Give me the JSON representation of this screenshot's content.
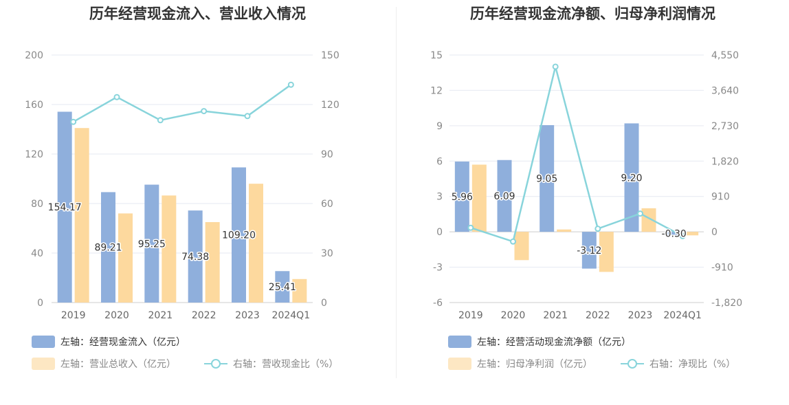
{
  "chart_data": [
    {
      "type": "bar",
      "title": "历年经营现金流入、营业收入情况",
      "categories": [
        "2019",
        "2020",
        "2021",
        "2022",
        "2023",
        "2024Q1"
      ],
      "left_axis": {
        "ylim": [
          0,
          200
        ],
        "ticks": [
          "0",
          "40",
          "80",
          "120",
          "160",
          "200"
        ]
      },
      "right_axis": {
        "ylim": [
          0,
          150
        ],
        "ticks": [
          "0",
          "30",
          "60",
          "90",
          "120",
          "150"
        ]
      },
      "series": [
        {
          "name": "左轴：经营现金流入（亿元）",
          "axis": "left",
          "type": "bar",
          "color": "#8fafdc",
          "values": [
            154.17,
            89.21,
            95.25,
            74.38,
            109.2,
            25.41
          ],
          "labels": [
            "154.17",
            "89.21",
            "95.25",
            "74.38",
            "109.20",
            "25.41"
          ]
        },
        {
          "name": "左轴：营业总收入（亿元）",
          "axis": "left",
          "type": "bar",
          "color": "#fdd99e",
          "values": [
            141,
            72,
            86.5,
            65,
            96,
            19
          ]
        },
        {
          "name": "右轴：营收现金比（%）",
          "axis": "right",
          "type": "line",
          "color": "#88d4db",
          "values": [
            109.5,
            124.5,
            110.5,
            116,
            113,
            132
          ]
        }
      ],
      "grid": true,
      "legend": "bottom"
    },
    {
      "type": "bar",
      "title": "历年经营现金流净额、归母净利润情况",
      "categories": [
        "2019",
        "2020",
        "2021",
        "2022",
        "2023",
        "2024Q1"
      ],
      "left_axis": {
        "ylim": [
          -6,
          15
        ],
        "ticks": [
          "-6",
          "-3",
          "0",
          "3",
          "6",
          "9",
          "12",
          "15"
        ]
      },
      "right_axis": {
        "ylim": [
          -1820,
          4550
        ],
        "ticks": [
          "-1,820",
          "-910",
          "0",
          "910",
          "1,820",
          "2,730",
          "3,640",
          "4,550"
        ]
      },
      "series": [
        {
          "name": "左轴：经营活动现金流净额（亿元）",
          "axis": "left",
          "type": "bar",
          "color": "#8fafdc",
          "values": [
            5.96,
            6.09,
            9.05,
            -3.12,
            9.2,
            -0.3
          ],
          "labels": [
            "5.96",
            "6.09",
            "9.05",
            "-3.12",
            "9.20",
            "-0.30"
          ]
        },
        {
          "name": "左轴：归母净利润（亿元）",
          "axis": "left",
          "type": "bar",
          "color": "#fdd99e",
          "values": [
            5.7,
            -2.4,
            0.2,
            -3.4,
            2.0,
            -0.3
          ]
        },
        {
          "name": "右轴：净现比（%）",
          "axis": "right",
          "type": "line",
          "color": "#88d4db",
          "values": [
            105,
            -250,
            4250,
            80,
            470,
            -110
          ]
        }
      ],
      "grid": true,
      "legend": "bottom"
    }
  ]
}
